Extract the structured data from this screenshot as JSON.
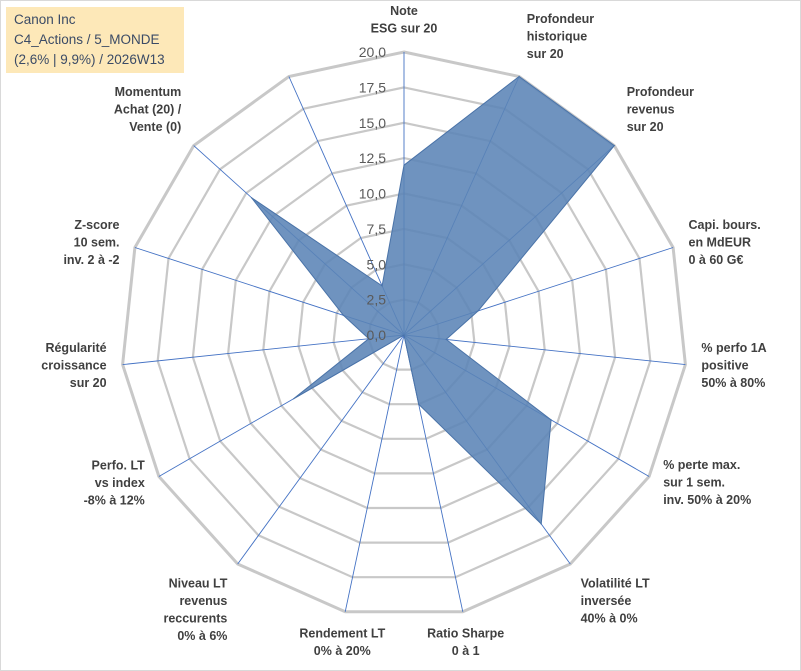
{
  "title_lines": [
    "Canon Inc",
    "C4_Actions / 5_MONDE",
    "(2,6% | 9,9%) / 2026W13"
  ],
  "colors": {
    "fill": "#5b84b6",
    "stroke": "#4a73a8",
    "grid": "#c8c8c8",
    "spoke": "#4472c4",
    "title_box": "#fde8b8"
  },
  "chart_data": {
    "type": "radar",
    "rmax": 20,
    "ticks": [
      "0,0",
      "2,5",
      "5,0",
      "7,5",
      "10,0",
      "12,5",
      "15,0",
      "17,5",
      "20,0"
    ],
    "axes": [
      {
        "lines": [
          "Note",
          "ESG sur 20"
        ],
        "value": 12
      },
      {
        "lines": [
          "Profondeur",
          "historique",
          "sur 20"
        ],
        "value": 20
      },
      {
        "lines": [
          "Profondeur",
          "revenus",
          "sur 20"
        ],
        "value": 20
      },
      {
        "lines": [
          "Capi. bours.",
          "en MdEUR",
          "0 à 60 G€"
        ],
        "value": 5.5
      },
      {
        "lines": [
          "% perfo 1A",
          "positive",
          "50% à 80%"
        ],
        "value": 3
      },
      {
        "lines": [
          "% perte max.",
          "sur 1 sem.",
          "inv. 50% à 20%"
        ],
        "value": 12
      },
      {
        "lines": [
          "Volatilité LT",
          "inversée",
          "40% à 0%"
        ],
        "value": 16.5
      },
      {
        "lines": [
          "Ratio Sharpe",
          "0 à 1"
        ],
        "value": 5
      },
      {
        "lines": [
          "Rendement LT",
          "0% à 20%"
        ],
        "value": 0
      },
      {
        "lines": [
          "Niveau LT",
          "revenus",
          "reccurents",
          "0% à 6%"
        ],
        "value": 0
      },
      {
        "lines": [
          "Perfo. LT",
          "vs index",
          "-8% à 12%"
        ],
        "value": 9
      },
      {
        "lines": [
          "Régularité",
          "croissance",
          "sur 20"
        ],
        "value": 2.5
      },
      {
        "lines": [
          "Z-score",
          "10 sem.",
          "inv. 2 à -2"
        ],
        "value": 4.5
      },
      {
        "lines": [
          "Momentum",
          "Achat (20) /",
          "Vente (0)"
        ],
        "value": 14.5
      },
      {
        "lines": [
          "",
          "",
          ""
        ],
        "value": 3.8
      }
    ]
  }
}
